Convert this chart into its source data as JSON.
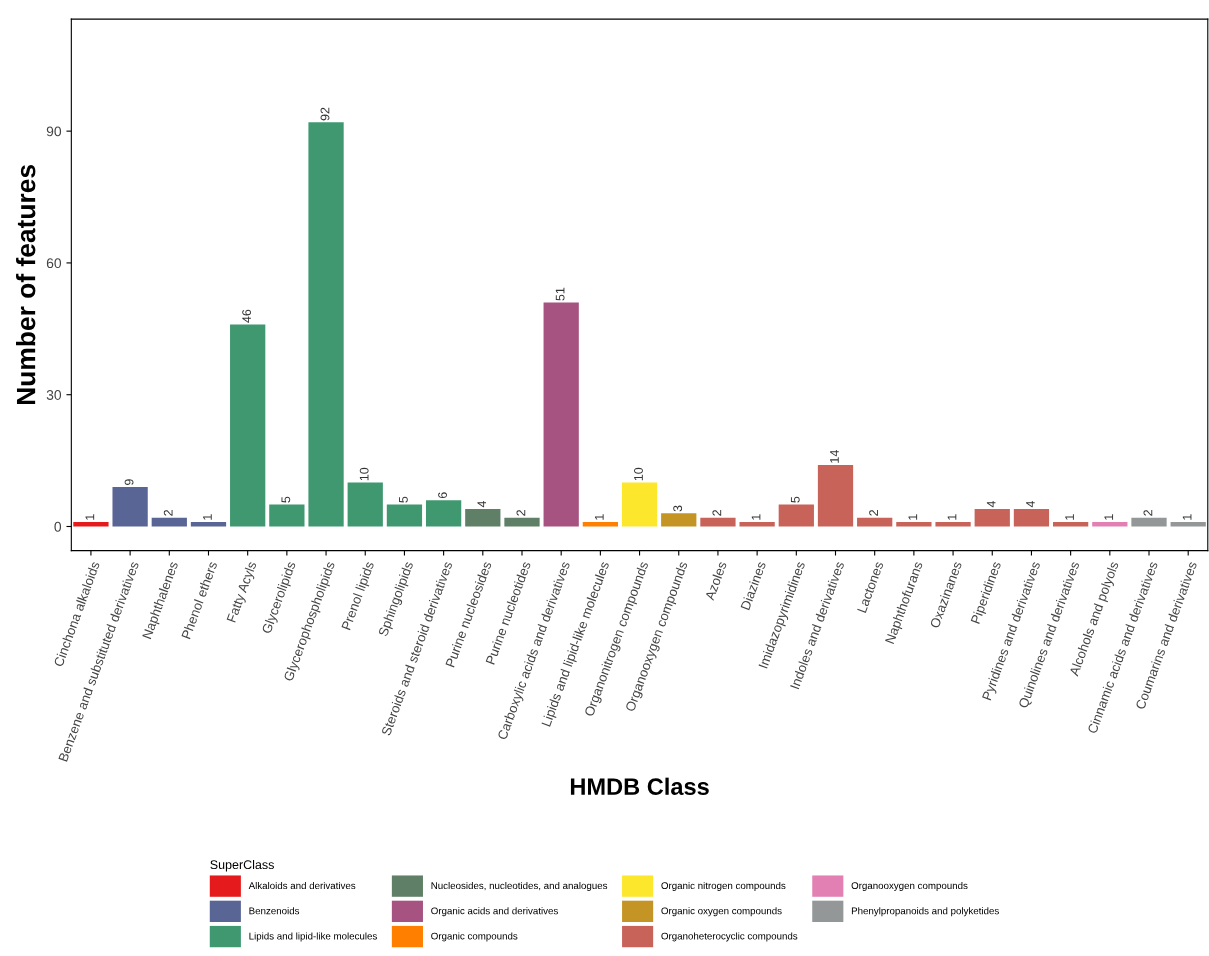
{
  "chart_data": {
    "type": "bar",
    "xlabel": "HMDB Class",
    "ylabel": "Number of features",
    "legend_title": "SuperClass",
    "legend": "bottom",
    "data_labels": true,
    "grid": false,
    "categories": [
      "Cinchona alkaloids",
      "Benzene and substituted derivatives",
      "Naphthalenes",
      "Phenol ethers",
      "Fatty Acyls",
      "Glycerolipids",
      "Glycerophospholipids",
      "Prenol lipids",
      "Sphingolipids",
      "Steroids and steroid derivatives",
      "Purine nucleosides",
      "Purine nucleotides",
      "Carboxylic acids and derivatives",
      "Lipids and lipid-like molecules",
      "Organonitrogen compounds",
      "Organooxygen compounds",
      "Azoles",
      "Diazines",
      "Imidazopyrimidines",
      "Indoles and derivatives",
      "Lactones",
      "Naphthofurans",
      "Oxazinanes",
      "Piperidines",
      "Pyridines and derivatives",
      "Quinolines and derivatives",
      "Alcohols and polyols",
      "Cinnamic acids and derivatives",
      "Coumarins and derivatives"
    ],
    "ylim": [
      -5.5,
      115.5
    ],
    "yticks": [
      0,
      30,
      60,
      90
    ],
    "series": [
      {
        "name": "Alkaloids and derivatives",
        "color": "#e41a1c",
        "values": [
          1,
          null,
          null,
          null,
          null,
          null,
          null,
          null,
          null,
          null,
          null,
          null,
          null,
          null,
          null,
          null,
          null,
          null,
          null,
          null,
          null,
          null,
          null,
          null,
          null,
          null,
          null,
          null,
          null
        ]
      },
      {
        "name": "Benzenoids",
        "color": "#596594",
        "values": [
          null,
          9,
          2,
          1,
          null,
          null,
          null,
          null,
          null,
          null,
          null,
          null,
          null,
          null,
          null,
          null,
          null,
          null,
          null,
          null,
          null,
          null,
          null,
          null,
          null,
          null,
          null,
          null,
          null
        ]
      },
      {
        "name": "Lipids and lipid-like molecules",
        "color": "#3f9870",
        "values": [
          null,
          null,
          null,
          null,
          46,
          5,
          92,
          10,
          5,
          6,
          null,
          null,
          null,
          null,
          null,
          null,
          null,
          null,
          null,
          null,
          null,
          null,
          null,
          null,
          null,
          null,
          null,
          null,
          null
        ]
      },
      {
        "name": "Nucleosides, nucleotides, and analogues",
        "color": "#5f8066",
        "values": [
          null,
          null,
          null,
          null,
          null,
          null,
          null,
          null,
          null,
          null,
          4,
          2,
          null,
          null,
          null,
          null,
          null,
          null,
          null,
          null,
          null,
          null,
          null,
          null,
          null,
          null,
          null,
          null,
          null
        ]
      },
      {
        "name": "Organic acids and derivatives",
        "color": "#a65382",
        "values": [
          null,
          null,
          null,
          null,
          null,
          null,
          null,
          null,
          null,
          null,
          null,
          null,
          51,
          null,
          null,
          null,
          null,
          null,
          null,
          null,
          null,
          null,
          null,
          null,
          null,
          null,
          null,
          null,
          null
        ]
      },
      {
        "name": "Organic compounds",
        "color": "#ff7f00",
        "values": [
          null,
          null,
          null,
          null,
          null,
          null,
          null,
          null,
          null,
          null,
          null,
          null,
          null,
          1,
          null,
          null,
          null,
          null,
          null,
          null,
          null,
          null,
          null,
          null,
          null,
          null,
          null,
          null,
          null
        ]
      },
      {
        "name": "Organic nitrogen compounds",
        "color": "#fce72c",
        "values": [
          null,
          null,
          null,
          null,
          null,
          null,
          null,
          null,
          null,
          null,
          null,
          null,
          null,
          null,
          10,
          null,
          null,
          null,
          null,
          null,
          null,
          null,
          null,
          null,
          null,
          null,
          null,
          null,
          null
        ]
      },
      {
        "name": "Organic oxygen compounds",
        "color": "#c49424",
        "values": [
          null,
          null,
          null,
          null,
          null,
          null,
          null,
          null,
          null,
          null,
          null,
          null,
          null,
          null,
          null,
          3,
          null,
          null,
          null,
          null,
          null,
          null,
          null,
          null,
          null,
          null,
          null,
          null,
          null
        ]
      },
      {
        "name": "Organoheterocyclic compounds",
        "color": "#c8635a",
        "values": [
          null,
          null,
          null,
          null,
          null,
          null,
          null,
          null,
          null,
          null,
          null,
          null,
          null,
          null,
          null,
          null,
          2,
          1,
          5,
          14,
          2,
          1,
          1,
          4,
          4,
          1,
          null,
          null,
          null
        ]
      },
      {
        "name": "Organooxygen compounds",
        "color": "#e280b4",
        "values": [
          null,
          null,
          null,
          null,
          null,
          null,
          null,
          null,
          null,
          null,
          null,
          null,
          null,
          null,
          null,
          null,
          null,
          null,
          null,
          null,
          null,
          null,
          null,
          null,
          null,
          null,
          1,
          null,
          null
        ]
      },
      {
        "name": "Phenylpropanoids and polyketides",
        "color": "#939797",
        "values": [
          null,
          null,
          null,
          null,
          null,
          null,
          null,
          null,
          null,
          null,
          null,
          null,
          null,
          null,
          null,
          null,
          null,
          null,
          null,
          null,
          null,
          null,
          null,
          null,
          null,
          null,
          null,
          2,
          1
        ]
      }
    ]
  }
}
